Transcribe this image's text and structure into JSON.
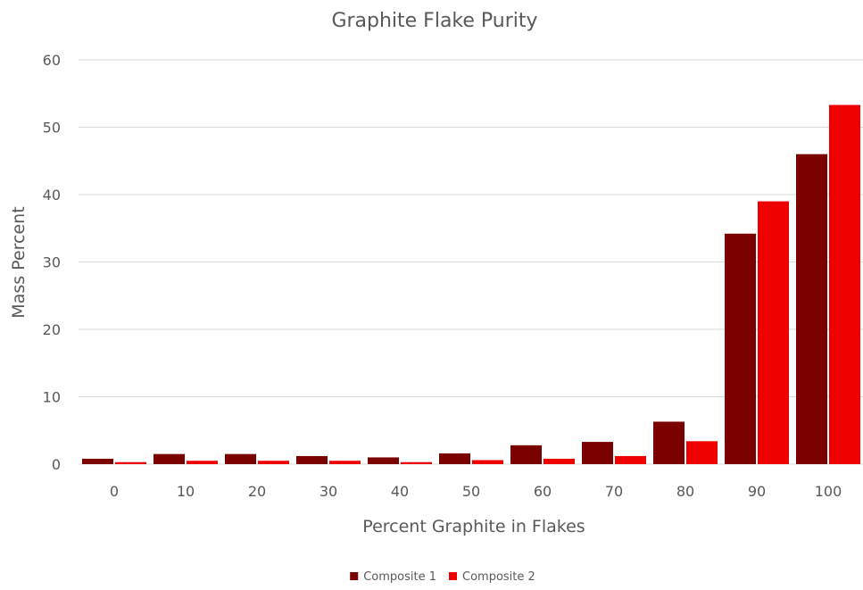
{
  "chart_data": {
    "type": "bar",
    "title": "Graphite Flake Purity",
    "xlabel": "Percent Graphite in Flakes",
    "ylabel": "Mass Percent",
    "categories": [
      "0",
      "10",
      "20",
      "30",
      "40",
      "50",
      "60",
      "70",
      "80",
      "90",
      "100"
    ],
    "series": [
      {
        "name": "Composite 1",
        "color": "#7b0000",
        "values": [
          0.8,
          1.5,
          1.5,
          1.2,
          1.0,
          1.6,
          2.8,
          3.3,
          6.3,
          34.2,
          46.0
        ]
      },
      {
        "name": "Composite 2",
        "color": "#ef0000",
        "values": [
          0.3,
          0.5,
          0.5,
          0.5,
          0.3,
          0.6,
          0.8,
          1.2,
          3.4,
          39.0,
          53.3
        ]
      }
    ],
    "ylim": [
      0,
      60
    ],
    "yticks": [
      0,
      10,
      20,
      30,
      40,
      50,
      60
    ],
    "grid": true,
    "legend_position": "bottom"
  }
}
